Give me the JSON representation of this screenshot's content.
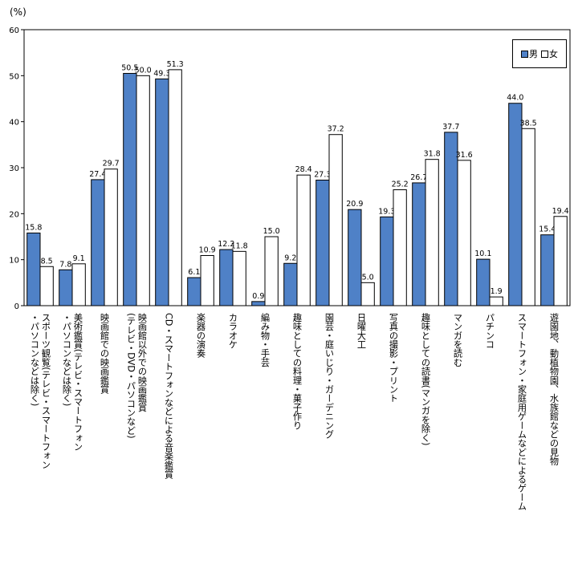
{
  "chart_data": {
    "type": "bar",
    "unit_label": "(%)",
    "ylim": [
      0,
      60
    ],
    "yticks": [
      "0",
      "10",
      "20",
      "30",
      "40",
      "50",
      "60"
    ],
    "grid": false,
    "legend_position": "top-right",
    "categories": [
      "スポーツ観覧(テレビ・スマートフォン・パソコンなどは除く)",
      "美術鑑賞(テレビ・スマートフォン・パソコンなどは除く)",
      "映画館での映画鑑賞",
      "映画館以外での映画鑑賞(テレビ・DVD・パソコンなど)",
      "CD・スマートフォンなどによる音楽鑑賞",
      "楽器の演奏",
      "カラオケ",
      "編み物・手芸",
      "趣味としての料理・菓子作り",
      "園芸・庭いじり・ガーデニング",
      "日曜大工",
      "写真の撮影・プリント",
      "趣味としての読書(マンガを除く)",
      "マンガを読む",
      "パチンコ",
      "スマートフォン・家庭用ゲームなどによるゲーム",
      "遊園地、動植物園、水族館などの見物"
    ],
    "category_lines": [
      [
        "スポーツ観覧(テレビ・スマートフォン",
        "・パソコンなどは除く)"
      ],
      [
        "美術鑑賞(テレビ・スマートフォン",
        "・パソコンなどは除く)"
      ],
      [
        "映画館での映画鑑賞"
      ],
      [
        "映画館以外での映画鑑賞",
        "(テレビ・DVD・パソコンなど)"
      ],
      [
        "CD・スマートフォンなどによる音楽鑑賞"
      ],
      [
        "楽器の演奏"
      ],
      [
        "カラオケ"
      ],
      [
        "編み物・手芸"
      ],
      [
        "趣味としての料理・菓子作り"
      ],
      [
        "園芸・庭いじり・ガーデニング"
      ],
      [
        "日曜大工"
      ],
      [
        "写真の撮影・プリント"
      ],
      [
        "趣味としての読書(マンガを除く)"
      ],
      [
        "マンガを読む"
      ],
      [
        "パチンコ"
      ],
      [
        "スマートフォン・家庭用ゲームなどによるゲーム"
      ],
      [
        "遊園地、動植物園、水族館などの見物"
      ]
    ],
    "series": [
      {
        "name": "男",
        "color": "#4f81c7",
        "values": [
          15.8,
          7.8,
          27.4,
          50.5,
          49.3,
          6.1,
          12.2,
          0.9,
          9.2,
          27.3,
          20.9,
          19.3,
          26.7,
          37.7,
          10.1,
          44.0,
          15.4
        ]
      },
      {
        "name": "女",
        "color": "#ffffff",
        "values": [
          8.5,
          9.1,
          29.7,
          50.0,
          51.3,
          10.9,
          11.8,
          15.0,
          28.4,
          37.2,
          5.0,
          25.2,
          31.8,
          31.6,
          1.9,
          38.5,
          19.4
        ]
      }
    ]
  }
}
